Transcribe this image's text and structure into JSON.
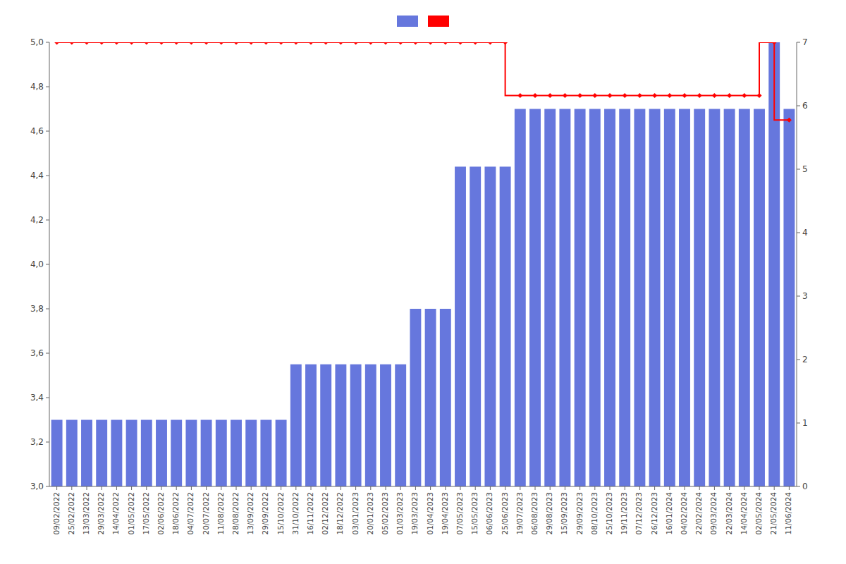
{
  "chart_data": {
    "type": "bar",
    "categories": [
      "09/02/2022",
      "25/02/2022",
      "13/03/2022",
      "29/03/2022",
      "14/04/2022",
      "01/05/2022",
      "17/05/2022",
      "02/06/2022",
      "18/06/2022",
      "04/07/2022",
      "20/07/2022",
      "11/08/2022",
      "28/08/2022",
      "13/09/2022",
      "29/09/2022",
      "15/10/2022",
      "31/10/2022",
      "16/11/2022",
      "02/12/2022",
      "18/12/2022",
      "03/01/2023",
      "20/01/2023",
      "05/02/2023",
      "01/03/2023",
      "19/03/2023",
      "01/04/2023",
      "19/04/2023",
      "07/05/2023",
      "15/05/2023",
      "06/06/2023",
      "25/06/2023",
      "19/07/2023",
      "06/08/2023",
      "29/08/2023",
      "15/09/2023",
      "29/09/2023",
      "08/10/2023",
      "25/10/2023",
      "19/11/2023",
      "07/12/2023",
      "26/12/2023",
      "16/01/2024",
      "04/02/2024",
      "22/02/2024",
      "09/03/2024",
      "22/03/2024",
      "14/04/2024",
      "02/05/2024",
      "21/05/2024",
      "11/06/2024"
    ],
    "series": [
      {
        "type": "bar",
        "color": "#6677dd",
        "values": [
          3.3,
          3.3,
          3.3,
          3.3,
          3.3,
          3.3,
          3.3,
          3.3,
          3.3,
          3.3,
          3.3,
          3.3,
          3.3,
          3.3,
          3.3,
          3.3,
          3.55,
          3.55,
          3.55,
          3.55,
          3.55,
          3.55,
          3.55,
          3.55,
          3.8,
          3.8,
          3.8,
          4.44,
          4.44,
          4.44,
          4.44,
          4.7,
          4.7,
          4.7,
          4.7,
          4.7,
          4.7,
          4.7,
          4.7,
          4.7,
          4.7,
          4.7,
          4.7,
          4.7,
          4.7,
          4.7,
          4.7,
          4.7,
          5.0,
          4.7
        ]
      },
      {
        "type": "line",
        "color": "#ff0000",
        "marker": "diamond",
        "line_style": "step",
        "values": [
          5.0,
          5.0,
          5.0,
          5.0,
          5.0,
          5.0,
          5.0,
          5.0,
          5.0,
          5.0,
          5.0,
          5.0,
          5.0,
          5.0,
          5.0,
          5.0,
          5.0,
          5.0,
          5.0,
          5.0,
          5.0,
          5.0,
          5.0,
          5.0,
          5.0,
          5.0,
          5.0,
          5.0,
          5.0,
          5.0,
          5.0,
          4.76,
          4.76,
          4.76,
          4.76,
          4.76,
          4.76,
          4.76,
          4.76,
          4.76,
          4.76,
          4.76,
          4.76,
          4.76,
          4.76,
          4.76,
          4.76,
          4.76,
          5.0,
          4.65
        ]
      }
    ],
    "ylim": [
      3.0,
      5.0
    ],
    "yticks": [
      {
        "value": 3.0,
        "label": "3,0"
      },
      {
        "value": 3.2,
        "label": "3,2"
      },
      {
        "value": 3.4,
        "label": "3,4"
      },
      {
        "value": 3.6,
        "label": "3,6"
      },
      {
        "value": 3.8,
        "label": "3,8"
      },
      {
        "value": 4.0,
        "label": "4,0"
      },
      {
        "value": 4.2,
        "label": "4,2"
      },
      {
        "value": 4.4,
        "label": "4,4"
      },
      {
        "value": 4.6,
        "label": "4,6"
      },
      {
        "value": 4.8,
        "label": "4,8"
      },
      {
        "value": 5.0,
        "label": "5,0"
      }
    ],
    "y2lim": [
      0,
      7
    ],
    "y2ticks": [
      0,
      1,
      2,
      3,
      4,
      5,
      6,
      7
    ],
    "grid": false,
    "legend": "top"
  }
}
